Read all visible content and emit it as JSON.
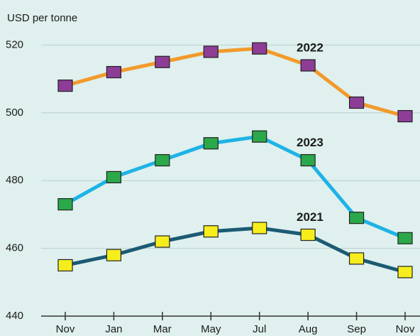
{
  "chart_data": {
    "type": "line",
    "y_axis_label": "USD per tonne",
    "categories": [
      "Nov",
      "Jan",
      "Mar",
      "May",
      "Jul",
      "Aug",
      "Sep",
      "Nov"
    ],
    "series": [
      {
        "name": "2022",
        "color": "#f39a2b",
        "marker_color": "#8e3d97",
        "values": [
          508,
          512,
          515,
          518,
          519,
          514,
          503,
          499
        ]
      },
      {
        "name": "2023",
        "color": "#1db3e6",
        "marker_color": "#2aa84a",
        "values": [
          473,
          481,
          486,
          491,
          493,
          486,
          469,
          463
        ]
      },
      {
        "name": "2021",
        "color": "#1b5a73",
        "marker_color": "#f6ee1c",
        "values": [
          455,
          458,
          462,
          465,
          466,
          464,
          457,
          453
        ]
      }
    ],
    "ylim": [
      440,
      527
    ],
    "yticks": [
      440,
      460,
      480,
      500,
      520
    ],
    "grid": true
  }
}
